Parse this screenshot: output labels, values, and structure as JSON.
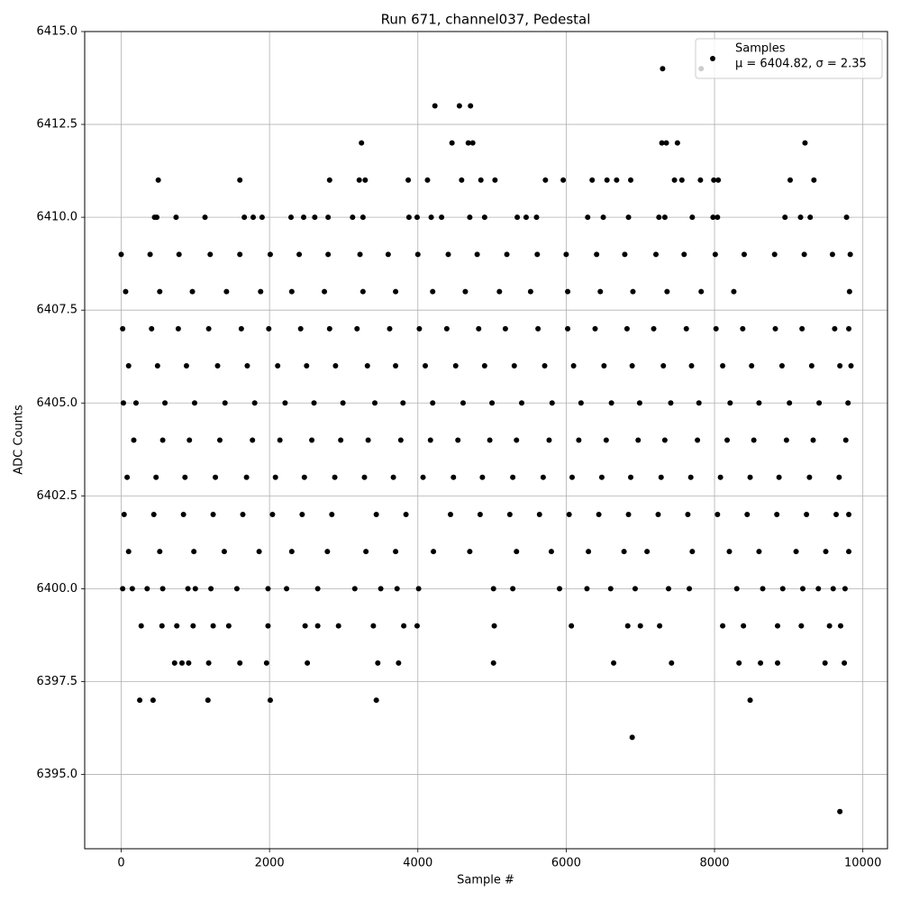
{
  "chart_data": {
    "type": "scatter",
    "title": "Run 671, channel037, Pedestal",
    "xlabel": "Sample #",
    "ylabel": "ADC Counts",
    "xlim": [
      -492,
      10332
    ],
    "ylim": [
      6393,
      6415
    ],
    "xticks": [
      0,
      2000,
      4000,
      6000,
      8000,
      10000
    ],
    "yticks": [
      {
        "value": 6395,
        "label": "6395.0"
      },
      6397.5,
      {
        "value": 6400,
        "label": "6400.0"
      },
      6402.5,
      {
        "value": 6405,
        "label": "6405.0"
      },
      6407.5,
      {
        "value": 6410,
        "label": "6410.0"
      },
      6412.5,
      {
        "value": 6415,
        "label": "6415.0"
      }
    ],
    "grid": true,
    "legend": "upper right",
    "series": [
      {
        "name": "Samples",
        "stats_label": "μ = 6404.82, σ = 2.35",
        "color": "#000000",
        "x": [
          0,
          390,
          780,
          1200,
          1600,
          2010,
          2400,
          2790,
          3220,
          3600,
          4000,
          4410,
          4800,
          5200,
          5610,
          6000,
          6410,
          6790,
          7210,
          7590,
          8010,
          8400,
          8810,
          9210,
          9590,
          9830,
          60,
          520,
          960,
          1420,
          1880,
          2300,
          2740,
          3260,
          3700,
          4200,
          4640,
          5100,
          5520,
          6020,
          6460,
          6900,
          7360,
          7820,
          8260,
          9820,
          20,
          410,
          770,
          1180,
          1620,
          1990,
          2420,
          2810,
          3180,
          3620,
          4020,
          4390,
          4820,
          5180,
          5620,
          6020,
          6390,
          6820,
          7180,
          7620,
          8020,
          8380,
          8820,
          9180,
          9620,
          9810,
          100,
          490,
          880,
          1300,
          1700,
          2110,
          2500,
          2890,
          3320,
          3700,
          4100,
          4510,
          4900,
          5300,
          5710,
          6100,
          6510,
          6890,
          7310,
          7690,
          8110,
          8500,
          8910,
          9310,
          9690,
          9840,
          30,
          200,
          590,
          990,
          1400,
          1800,
          2210,
          2600,
          2990,
          3420,
          3800,
          4200,
          4610,
          5000,
          5400,
          5810,
          6200,
          6610,
          6990,
          7410,
          7790,
          8210,
          8600,
          9010,
          9410,
          9800,
          170,
          560,
          920,
          1330,
          1770,
          2140,
          2570,
          2960,
          3330,
          3770,
          4170,
          4540,
          4970,
          5330,
          5770,
          6170,
          6540,
          6970,
          7330,
          7770,
          8170,
          8530,
          8970,
          9330,
          9770,
          80,
          470,
          860,
          1270,
          1690,
          2080,
          2470,
          2880,
          3280,
          3670,
          4070,
          4480,
          4870,
          5280,
          5690,
          6080,
          6480,
          6870,
          7280,
          7680,
          8080,
          8480,
          8870,
          9280,
          9680,
          40,
          440,
          840,
          1240,
          1640,
          2040,
          2440,
          2840,
          3440,
          3840,
          4440,
          4840,
          5240,
          5640,
          6040,
          6440,
          6840,
          7240,
          7640,
          8040,
          8440,
          8840,
          9240,
          9640,
          9810,
          100,
          520,
          980,
          1390,
          1860,
          2300,
          2780,
          3300,
          3700,
          4210,
          4700,
          5330,
          5800,
          6300,
          6780,
          7090,
          7700,
          8200,
          8600,
          9100,
          9500,
          9810,
          20,
          150,
          350,
          560,
          900,
          1000,
          1210,
          1560,
          1980,
          2230,
          2650,
          3150,
          3500,
          3720,
          4010,
          5020,
          5280,
          5910,
          6280,
          6600,
          6930,
          7380,
          7660,
          8300,
          8650,
          8920,
          9190,
          9400,
          9600,
          9760,
          270,
          550,
          750,
          970,
          1240,
          1450,
          1980,
          2480,
          2650,
          2930,
          3400,
          3810,
          3990,
          5030,
          6070,
          6830,
          7000,
          7260,
          8110,
          8390,
          8850,
          9170,
          9550,
          9700,
          720,
          820,
          910,
          1180,
          1600,
          1960,
          2510,
          3460,
          3740,
          5020,
          6640,
          7420,
          8330,
          8620,
          8850,
          9490,
          9750,
          250,
          430,
          1170,
          2010,
          3440,
          8480,
          6890,
          9690,
          7300,
          7820,
          4230,
          4560,
          4710,
          3240,
          4460,
          4680,
          4740,
          7290,
          7350,
          7500,
          9220,
          500,
          1600,
          2810,
          3210,
          3290,
          3870,
          4130,
          4590,
          4850,
          5040,
          5720,
          5960,
          6350,
          6550,
          6680,
          6870,
          7460,
          7560,
          7810,
          7990,
          8050,
          9020,
          9340,
          450,
          480,
          740,
          1130,
          1660,
          1780,
          1900,
          2290,
          2460,
          2610,
          2790,
          3120,
          3260,
          3880,
          3990,
          4180,
          4320,
          4700,
          4900,
          5340,
          5460,
          5600,
          6290,
          6500,
          6840,
          7250,
          7330,
          7700,
          7980,
          8040,
          8950,
          9160,
          9290,
          9780
        ],
        "values": [
          6409,
          6409,
          6409,
          6409,
          6409,
          6409,
          6409,
          6409,
          6409,
          6409,
          6409,
          6409,
          6409,
          6409,
          6409,
          6409,
          6409,
          6409,
          6409,
          6409,
          6409,
          6409,
          6409,
          6409,
          6409,
          6409,
          6408,
          6408,
          6408,
          6408,
          6408,
          6408,
          6408,
          6408,
          6408,
          6408,
          6408,
          6408,
          6408,
          6408,
          6408,
          6408,
          6408,
          6408,
          6408,
          6408,
          6407,
          6407,
          6407,
          6407,
          6407,
          6407,
          6407,
          6407,
          6407,
          6407,
          6407,
          6407,
          6407,
          6407,
          6407,
          6407,
          6407,
          6407,
          6407,
          6407,
          6407,
          6407,
          6407,
          6407,
          6407,
          6407,
          6406,
          6406,
          6406,
          6406,
          6406,
          6406,
          6406,
          6406,
          6406,
          6406,
          6406,
          6406,
          6406,
          6406,
          6406,
          6406,
          6406,
          6406,
          6406,
          6406,
          6406,
          6406,
          6406,
          6406,
          6406,
          6406,
          6405,
          6405,
          6405,
          6405,
          6405,
          6405,
          6405,
          6405,
          6405,
          6405,
          6405,
          6405,
          6405,
          6405,
          6405,
          6405,
          6405,
          6405,
          6405,
          6405,
          6405,
          6405,
          6405,
          6405,
          6405,
          6405,
          6404,
          6404,
          6404,
          6404,
          6404,
          6404,
          6404,
          6404,
          6404,
          6404,
          6404,
          6404,
          6404,
          6404,
          6404,
          6404,
          6404,
          6404,
          6404,
          6404,
          6404,
          6404,
          6404,
          6404,
          6404,
          6403,
          6403,
          6403,
          6403,
          6403,
          6403,
          6403,
          6403,
          6403,
          6403,
          6403,
          6403,
          6403,
          6403,
          6403,
          6403,
          6403,
          6403,
          6403,
          6403,
          6403,
          6403,
          6403,
          6403,
          6403,
          6402,
          6402,
          6402,
          6402,
          6402,
          6402,
          6402,
          6402,
          6402,
          6402,
          6402,
          6402,
          6402,
          6402,
          6402,
          6402,
          6402,
          6402,
          6402,
          6402,
          6402,
          6402,
          6402,
          6402,
          6402,
          6401,
          6401,
          6401,
          6401,
          6401,
          6401,
          6401,
          6401,
          6401,
          6401,
          6401,
          6401,
          6401,
          6401,
          6401,
          6401,
          6401,
          6401,
          6401,
          6401,
          6401,
          6401,
          6400,
          6400,
          6400,
          6400,
          6400,
          6400,
          6400,
          6400,
          6400,
          6400,
          6400,
          6400,
          6400,
          6400,
          6400,
          6400,
          6400,
          6400,
          6400,
          6400,
          6400,
          6400,
          6400,
          6400,
          6400,
          6400,
          6400,
          6400,
          6400,
          6400,
          6399,
          6399,
          6399,
          6399,
          6399,
          6399,
          6399,
          6399,
          6399,
          6399,
          6399,
          6399,
          6399,
          6399,
          6399,
          6399,
          6399,
          6399,
          6399,
          6399,
          6399,
          6399,
          6399,
          6399,
          6398,
          6398,
          6398,
          6398,
          6398,
          6398,
          6398,
          6398,
          6398,
          6398,
          6398,
          6398,
          6398,
          6398,
          6398,
          6398,
          6398,
          6397,
          6397,
          6397,
          6397,
          6397,
          6397,
          6396,
          6394,
          6414,
          6414,
          6413,
          6413,
          6413,
          6412,
          6412,
          6412,
          6412,
          6412,
          6412,
          6412,
          6412,
          6411,
          6411,
          6411,
          6411,
          6411,
          6411,
          6411,
          6411,
          6411,
          6411,
          6411,
          6411,
          6411,
          6411,
          6411,
          6411,
          6411,
          6411,
          6411,
          6411,
          6411,
          6411,
          6411,
          6410,
          6410,
          6410,
          6410,
          6410,
          6410,
          6410,
          6410,
          6410,
          6410,
          6410,
          6410,
          6410,
          6410,
          6410,
          6410,
          6410,
          6410,
          6410,
          6410,
          6410,
          6410,
          6410,
          6410,
          6410,
          6410,
          6410,
          6410,
          6410,
          6410,
          6410,
          6410,
          6410,
          6410
        ]
      }
    ]
  }
}
